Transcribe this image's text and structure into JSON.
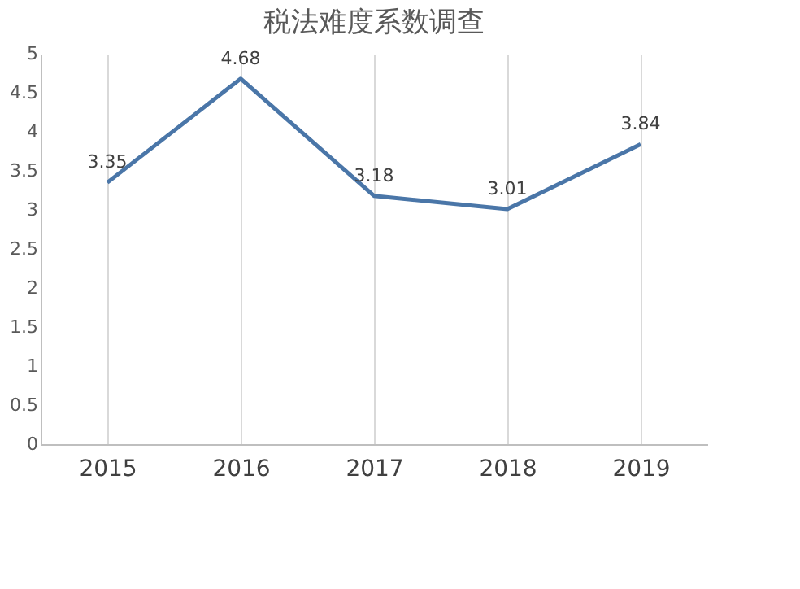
{
  "chart_data": {
    "type": "line",
    "title": "税法难度系数调查",
    "categories": [
      "2015",
      "2016",
      "2017",
      "2018",
      "2019"
    ],
    "series": [
      {
        "color": "#4a76a8",
        "values": [
          3.35,
          4.68,
          3.18,
          3.01,
          3.84
        ]
      }
    ],
    "ylim": [
      0,
      5
    ],
    "yticks": [
      0,
      0.5,
      1,
      1.5,
      2,
      2.5,
      3,
      3.5,
      4,
      4.5,
      5
    ],
    "grid": "x",
    "data_labels": true,
    "marker": "none",
    "line_style": "solid"
  }
}
